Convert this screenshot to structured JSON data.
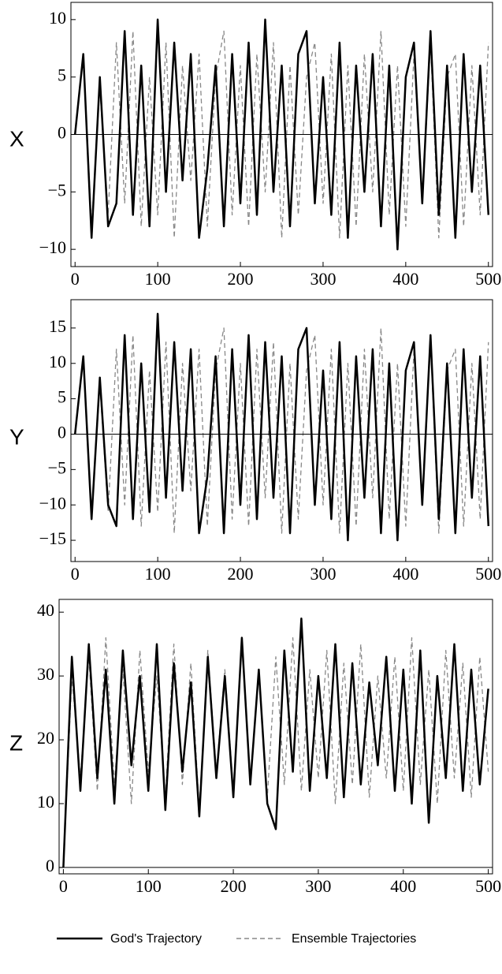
{
  "chart_data": [
    {
      "type": "line",
      "y_label": "X",
      "x": [
        0,
        10,
        20,
        30,
        40,
        50,
        60,
        70,
        80,
        90,
        100,
        110,
        120,
        130,
        140,
        150,
        160,
        170,
        180,
        190,
        200,
        210,
        220,
        230,
        240,
        250,
        260,
        270,
        280,
        290,
        300,
        310,
        320,
        330,
        340,
        350,
        360,
        370,
        380,
        390,
        400,
        410,
        420,
        430,
        440,
        450,
        460,
        470,
        480,
        490,
        500
      ],
      "series": [
        {
          "name": "Ensemble Trajectories",
          "color": "#888888",
          "dashed": true,
          "values": [
            0,
            7,
            -8,
            4,
            -7,
            8,
            -6,
            9,
            -8,
            5,
            -7,
            8,
            -9,
            6,
            -4,
            7,
            -8,
            5,
            9,
            -7,
            6,
            -8,
            7,
            -5,
            8,
            -9,
            6,
            -7,
            5,
            8,
            -6,
            7,
            -9,
            6,
            -8,
            7,
            -5,
            9,
            -7,
            6,
            -8,
            7,
            -6,
            8,
            -9,
            5,
            7,
            -8,
            6,
            -7,
            8
          ]
        },
        {
          "name": "God's Trajectory",
          "color": "#000000",
          "dashed": false,
          "values": [
            0,
            7,
            -9,
            5,
            -8,
            -6,
            9,
            -7,
            6,
            -8,
            10,
            -5,
            8,
            -4,
            7,
            -9,
            -3,
            6,
            -8,
            7,
            -6,
            8,
            -7,
            10,
            -5,
            6,
            -8,
            7,
            9,
            -6,
            5,
            -7,
            8,
            -9,
            6,
            -5,
            7,
            -8,
            6,
            -10,
            5,
            8,
            -6,
            9,
            -7,
            6,
            -9,
            7,
            -5,
            6,
            -7
          ]
        }
      ],
      "xlim": [
        -5,
        505
      ],
      "xticks": [
        0,
        100,
        200,
        300,
        400,
        500
      ],
      "ylim": [
        -11.5,
        11.5
      ],
      "yticks": [
        {
          "value": -10,
          "label": "−10"
        },
        {
          "value": -5,
          "label": "−5"
        },
        0,
        5,
        10
      ]
    },
    {
      "type": "line",
      "y_label": "Y",
      "x": [
        0,
        10,
        20,
        30,
        40,
        50,
        60,
        70,
        80,
        90,
        100,
        110,
        120,
        130,
        140,
        150,
        160,
        170,
        180,
        190,
        200,
        210,
        220,
        230,
        240,
        250,
        260,
        270,
        280,
        290,
        300,
        310,
        320,
        330,
        340,
        350,
        360,
        370,
        380,
        390,
        400,
        410,
        420,
        430,
        440,
        450,
        460,
        470,
        480,
        490,
        500
      ],
      "series": [
        {
          "color": "#888888",
          "dashed": true,
          "values": [
            0,
            11,
            -12,
            7,
            -11,
            12,
            -10,
            14,
            -13,
            9,
            -11,
            13,
            -14,
            10,
            -8,
            12,
            -13,
            9,
            15,
            -12,
            10,
            -13,
            12,
            -9,
            13,
            -14,
            10,
            -12,
            9,
            14,
            -10,
            12,
            -14,
            10,
            -13,
            12,
            -9,
            15,
            -12,
            10,
            -13,
            12,
            -10,
            13,
            -14,
            9,
            12,
            -13,
            10,
            -12,
            13
          ]
        },
        {
          "color": "#000000",
          "dashed": false,
          "values": [
            0,
            11,
            -12,
            8,
            -10,
            -13,
            14,
            -12,
            10,
            -11,
            17,
            -9,
            13,
            -8,
            12,
            -14,
            -6,
            11,
            -14,
            12,
            -10,
            14,
            -12,
            13,
            -9,
            11,
            -14,
            12,
            15,
            -10,
            9,
            -12,
            13,
            -15,
            11,
            -9,
            12,
            -14,
            10,
            -15,
            9,
            13,
            -10,
            14,
            -12,
            10,
            -14,
            12,
            -9,
            11,
            -13
          ]
        }
      ],
      "xlim": [
        -5,
        505
      ],
      "xticks": [
        0,
        100,
        200,
        300,
        400,
        500
      ],
      "ylim": [
        -18,
        19
      ],
      "yticks": [
        {
          "value": -15,
          "label": "−15"
        },
        {
          "value": -10,
          "label": "−10"
        },
        {
          "value": -5,
          "label": "−5"
        },
        0,
        5,
        10,
        15
      ]
    },
    {
      "type": "line",
      "y_label": "Z",
      "x": [
        0,
        10,
        20,
        30,
        40,
        50,
        60,
        70,
        80,
        90,
        100,
        110,
        120,
        130,
        140,
        150,
        160,
        170,
        180,
        190,
        200,
        210,
        220,
        230,
        240,
        250,
        260,
        270,
        280,
        290,
        300,
        310,
        320,
        330,
        340,
        350,
        360,
        370,
        380,
        390,
        400,
        410,
        420,
        430,
        440,
        450,
        460,
        470,
        480,
        490,
        500
      ],
      "series": [
        {
          "color": "#888888",
          "dashed": true,
          "values": [
            0,
            30,
            14,
            33,
            12,
            36,
            13,
            31,
            10,
            34,
            15,
            30,
            11,
            35,
            13,
            32,
            9,
            34,
            15,
            31,
            12,
            35,
            14,
            30,
            11,
            33,
            13,
            36,
            12,
            31,
            14,
            34,
            10,
            32,
            13,
            35,
            11,
            30,
            14,
            33,
            12,
            36,
            13,
            31,
            10,
            34,
            14,
            32,
            11,
            33,
            15
          ]
        },
        {
          "color": "#000000",
          "dashed": false,
          "values": [
            0,
            33,
            12,
            35,
            14,
            31,
            10,
            34,
            16,
            30,
            12,
            35,
            9,
            32,
            15,
            29,
            8,
            33,
            14,
            30,
            11,
            36,
            13,
            31,
            10,
            6,
            34,
            15,
            39,
            12,
            30,
            14,
            35,
            11,
            32,
            13,
            29,
            16,
            33,
            12,
            31,
            10,
            34,
            7,
            30,
            14,
            35,
            12,
            31,
            13,
            28
          ]
        }
      ],
      "xlim": [
        -5,
        505
      ],
      "xticks": [
        0,
        100,
        200,
        300,
        400,
        500
      ],
      "ylim": [
        -1,
        42
      ],
      "yticks": [
        0,
        10,
        20,
        30,
        40
      ]
    }
  ]
}
